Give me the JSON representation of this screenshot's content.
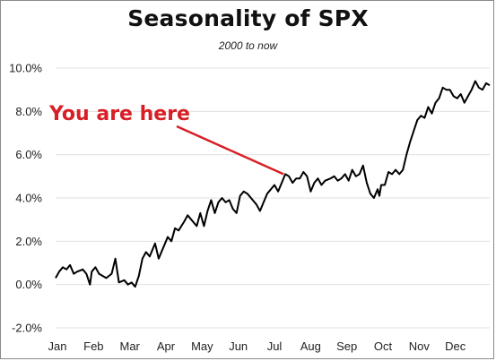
{
  "chart_data": {
    "type": "line",
    "title": "Seasonality of SPX",
    "subtitle": "2000 to now",
    "xlabel": "",
    "ylabel": "",
    "ylim": [
      -2.0,
      10.0
    ],
    "ytick_values": [
      -2,
      0,
      2,
      4,
      6,
      8,
      10
    ],
    "ytick_labels": [
      "-2.0%",
      "0.0%",
      "2.0%",
      "4.0%",
      "6.0%",
      "8.0%",
      "10.0%"
    ],
    "xtick_labels": [
      "Jan",
      "Feb",
      "Mar",
      "Apr",
      "May",
      "Jun",
      "Jul",
      "Aug",
      "Sep",
      "Oct",
      "Nov",
      "Dec"
    ],
    "xlim": [
      0,
      12
    ],
    "grid": "horizontal",
    "line_color": "#000000",
    "series": [
      {
        "x": [
          0.0,
          0.1,
          0.2,
          0.3,
          0.4,
          0.5,
          0.6,
          0.75,
          0.85,
          0.95,
          1.0,
          1.1,
          1.2,
          1.3,
          1.4,
          1.55,
          1.65,
          1.75,
          1.9,
          2.0,
          2.1,
          2.2,
          2.3,
          2.4,
          2.5,
          2.6,
          2.75,
          2.85,
          3.0,
          3.1,
          3.2,
          3.3,
          3.4,
          3.55,
          3.65,
          3.75,
          3.9,
          4.0,
          4.1,
          4.2,
          4.3,
          4.4,
          4.5,
          4.6,
          4.7,
          4.8,
          4.9,
          5.0,
          5.1,
          5.2,
          5.3,
          5.45,
          5.55,
          5.65,
          5.75,
          5.85,
          5.95,
          6.05,
          6.15,
          6.25,
          6.35,
          6.45,
          6.55,
          6.65,
          6.75,
          6.85,
          6.95,
          7.05,
          7.15,
          7.25,
          7.35,
          7.45,
          7.6,
          7.7,
          7.8,
          7.9,
          8.0,
          8.1,
          8.2,
          8.3,
          8.4,
          8.5,
          8.6,
          8.7,
          8.8,
          8.9,
          8.95,
          9.0,
          9.1,
          9.2,
          9.3,
          9.4,
          9.5,
          9.6,
          9.7,
          9.8,
          9.9,
          10.0,
          10.1,
          10.2,
          10.3,
          10.4,
          10.5,
          10.6,
          10.7,
          10.8,
          10.9,
          11.0,
          11.1,
          11.2,
          11.3,
          11.4,
          11.5,
          11.6,
          11.7,
          11.8,
          11.9,
          12.0
        ],
        "y": [
          0.3,
          0.6,
          0.8,
          0.7,
          0.9,
          0.5,
          0.6,
          0.7,
          0.5,
          0.0,
          0.6,
          0.8,
          0.5,
          0.4,
          0.3,
          0.5,
          1.2,
          0.1,
          0.2,
          0.0,
          0.1,
          -0.1,
          0.4,
          1.2,
          1.5,
          1.3,
          1.9,
          1.2,
          1.8,
          2.2,
          2.0,
          2.6,
          2.5,
          2.9,
          3.2,
          3.0,
          2.7,
          3.3,
          2.7,
          3.4,
          3.9,
          3.3,
          3.8,
          4.0,
          3.8,
          3.9,
          3.5,
          3.3,
          4.1,
          4.3,
          4.2,
          3.9,
          3.7,
          3.4,
          3.8,
          4.2,
          4.4,
          4.6,
          4.3,
          4.7,
          5.1,
          5.0,
          4.7,
          4.9,
          4.9,
          5.2,
          5.0,
          4.3,
          4.7,
          4.9,
          4.6,
          4.8,
          4.9,
          5.0,
          4.8,
          4.9,
          5.1,
          4.8,
          5.3,
          5.0,
          5.1,
          5.5,
          4.7,
          4.2,
          4.0,
          4.4,
          4.1,
          4.6,
          4.6,
          5.2,
          5.1,
          5.3,
          5.1,
          5.3,
          6.0,
          6.6,
          7.1,
          7.6,
          7.8,
          7.7,
          8.2,
          7.9,
          8.4,
          8.6,
          9.1,
          9.0,
          9.0,
          8.7,
          8.6,
          8.8,
          8.4,
          8.7,
          9.0,
          9.4,
          9.1,
          9.0,
          9.3,
          9.2
        ],
        "annotation_x": 6.3
      }
    ],
    "annotation": {
      "text": "You are here",
      "color": "#d81f26"
    }
  }
}
